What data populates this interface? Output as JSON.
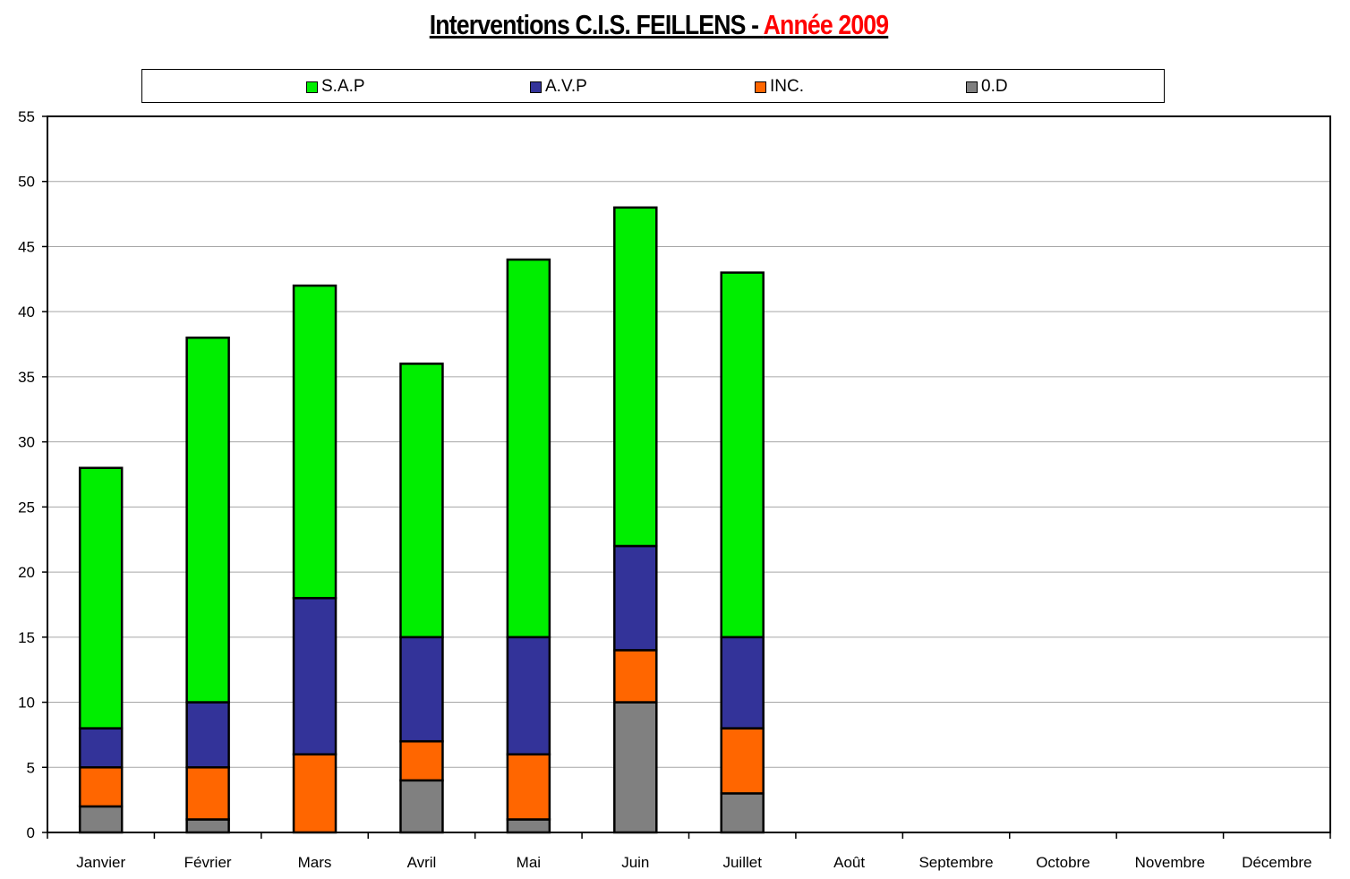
{
  "chart_data": {
    "type": "bar",
    "stacked": true,
    "title_part1": "Interventions C.I.S. FEILLENS - ",
    "title_part2": "Année 2009",
    "categories": [
      "Janvier",
      "Février",
      "Mars",
      "Avril",
      "Mai",
      "Juin",
      "Juillet",
      "Août",
      "Septembre",
      "Octobre",
      "Novembre",
      "Décembre"
    ],
    "series": [
      {
        "name": "0.D",
        "color": "#808080",
        "values": [
          2,
          1,
          0,
          4,
          1,
          10,
          3,
          null,
          null,
          null,
          null,
          null
        ]
      },
      {
        "name": "INC.",
        "color": "#ff6600",
        "values": [
          3,
          4,
          6,
          3,
          5,
          4,
          5,
          null,
          null,
          null,
          null,
          null
        ]
      },
      {
        "name": "A.V.P",
        "color": "#333399",
        "values": [
          3,
          5,
          12,
          8,
          9,
          8,
          7,
          null,
          null,
          null,
          null,
          null
        ]
      },
      {
        "name": "S.A.P",
        "color": "#00ee00",
        "values": [
          20,
          28,
          24,
          21,
          29,
          26,
          28,
          null,
          null,
          null,
          null,
          null
        ]
      }
    ],
    "legend_order": [
      "S.A.P",
      "A.V.P",
      "INC.",
      "0.D"
    ],
    "ylim": [
      0,
      55
    ],
    "yticks": [
      0,
      5,
      10,
      15,
      20,
      25,
      30,
      35,
      40,
      45,
      50,
      55
    ],
    "grid": true,
    "legend_position": "top"
  }
}
